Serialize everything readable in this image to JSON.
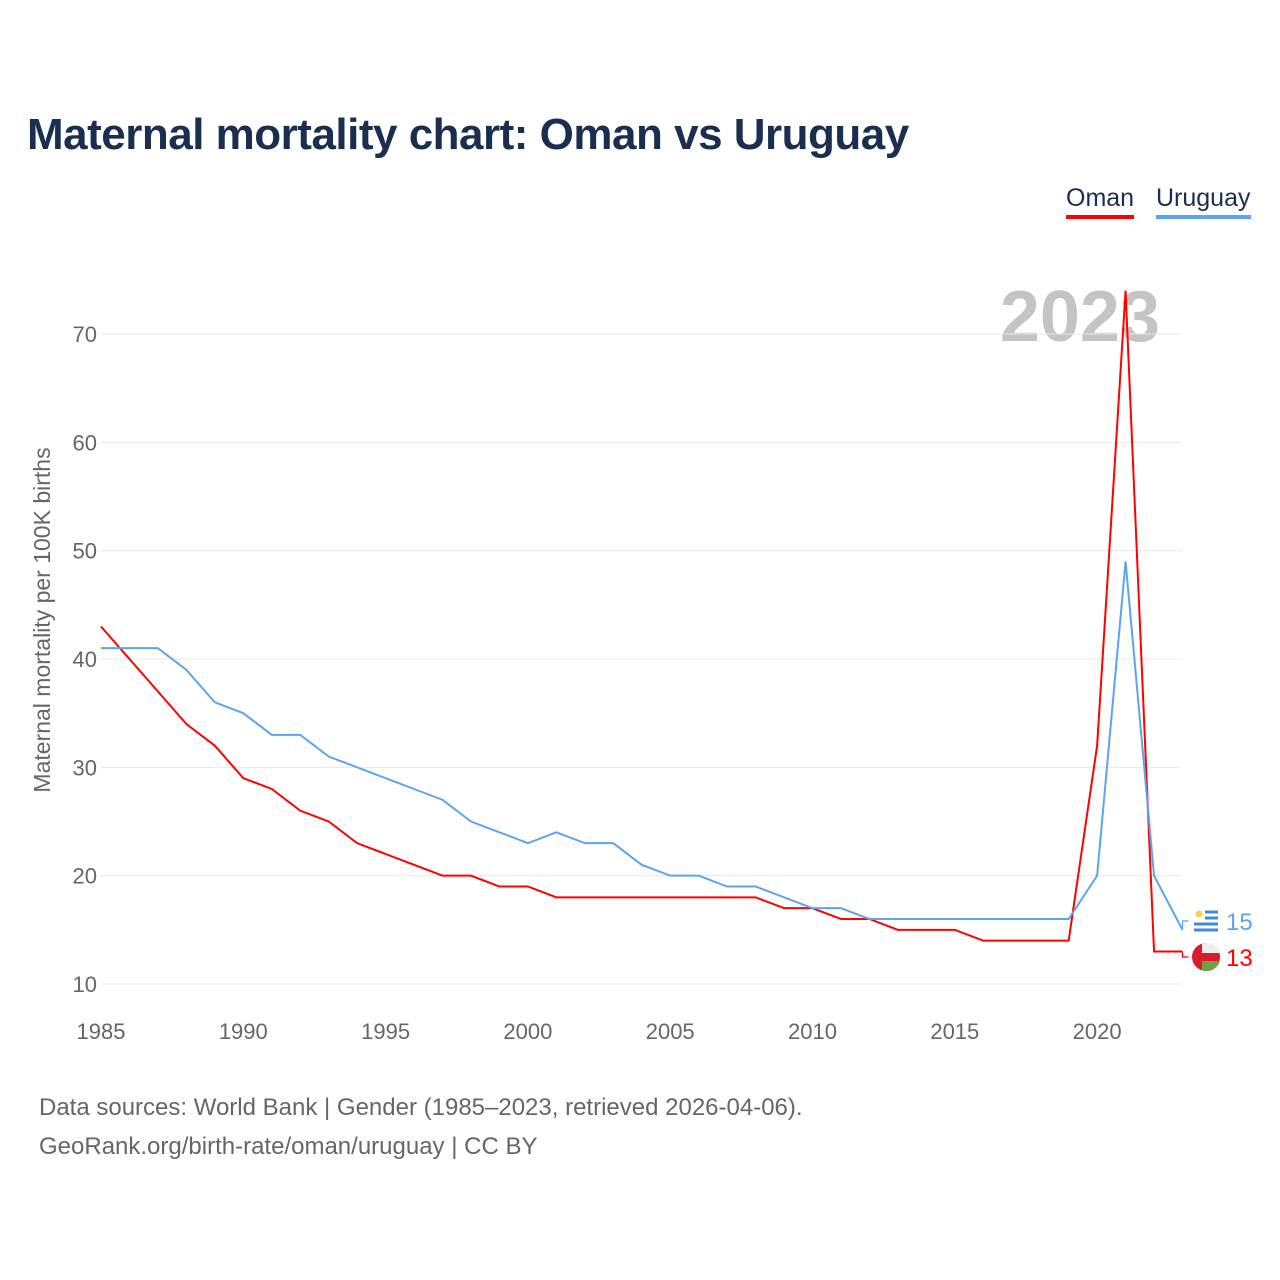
{
  "title": "Maternal mortality chart: Oman vs Uruguay",
  "legend": {
    "oman": "Oman",
    "uruguay": "Uruguay"
  },
  "year_label": "2023",
  "footer": {
    "line1": "Data sources: World Bank | Gender (1985–2023, retrieved 2026-04-06).",
    "line2": "GeoRank.org/birth-rate/oman/uruguay | CC BY"
  },
  "chart_data": {
    "type": "line",
    "title": "Maternal mortality chart: Oman vs Uruguay",
    "xlabel": "",
    "ylabel": "Maternal mortality per 100K births",
    "xlim": [
      1985,
      2023
    ],
    "ylim": [
      10,
      70
    ],
    "xticks": [
      1985,
      1990,
      1995,
      2000,
      2005,
      2010,
      2015,
      2020
    ],
    "yticks": [
      10,
      20,
      30,
      40,
      50,
      60,
      70
    ],
    "grid": true,
    "legend_position": "top-right",
    "x": [
      1985,
      1986,
      1987,
      1988,
      1989,
      1990,
      1991,
      1992,
      1993,
      1994,
      1995,
      1996,
      1997,
      1998,
      1999,
      2000,
      2001,
      2002,
      2003,
      2004,
      2005,
      2006,
      2007,
      2008,
      2009,
      2010,
      2011,
      2012,
      2013,
      2014,
      2015,
      2016,
      2017,
      2018,
      2019,
      2020,
      2021,
      2022,
      2023
    ],
    "series": [
      {
        "name": "Oman",
        "color": "#ff0000",
        "end_label": "13",
        "values": [
          43,
          40,
          37,
          34,
          32,
          29,
          28,
          26,
          25,
          23,
          22,
          21,
          20,
          20,
          19,
          19,
          18,
          18,
          18,
          18,
          18,
          18,
          18,
          18,
          17,
          17,
          16,
          16,
          15,
          15,
          15,
          14,
          14,
          14,
          14,
          32,
          74,
          13,
          13
        ]
      },
      {
        "name": "Uruguay",
        "color": "#5da5ea",
        "end_label": "15",
        "values": [
          41,
          41,
          41,
          39,
          36,
          35,
          33,
          33,
          31,
          30,
          29,
          28,
          27,
          25,
          24,
          23,
          24,
          23,
          23,
          21,
          20,
          20,
          19,
          19,
          18,
          17,
          17,
          16,
          16,
          16,
          16,
          16,
          16,
          16,
          16,
          20,
          49,
          20,
          15
        ]
      }
    ]
  }
}
